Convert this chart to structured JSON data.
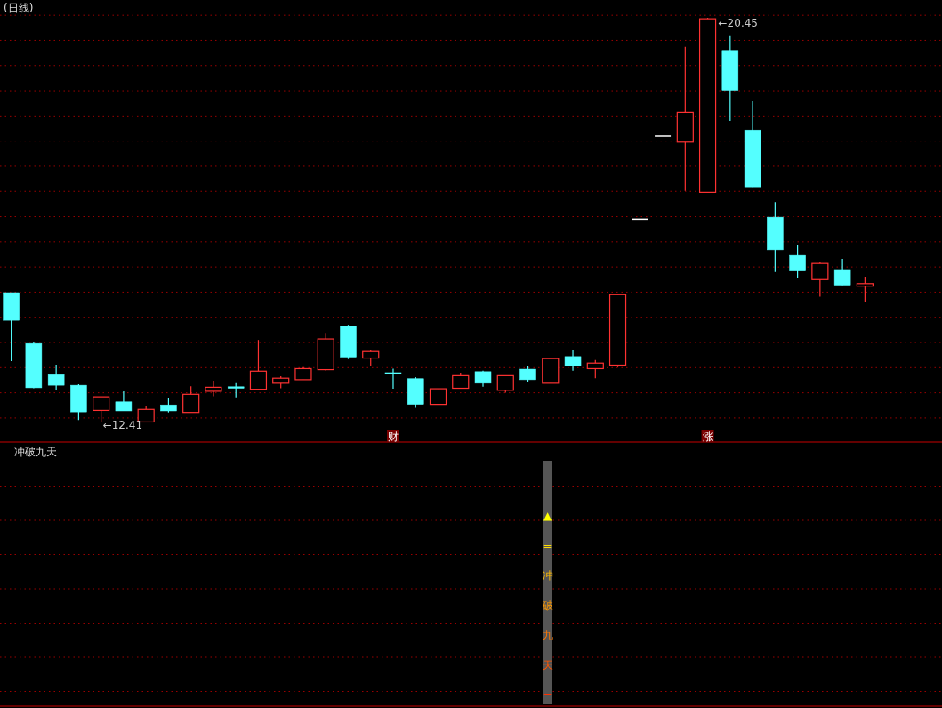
{
  "chart_data": [
    {
      "type": "candlestick",
      "title": "(日线)",
      "grid": "y",
      "yticks": [
        {
          "value": 12.5,
          "label": null
        },
        {
          "value": 13,
          "label": null
        },
        {
          "value": 13.5,
          "label": null
        },
        {
          "value": 14,
          "label": null
        },
        {
          "value": 14.5,
          "label": null
        },
        {
          "value": 15,
          "label": null
        },
        {
          "value": 15.5,
          "label": null
        },
        {
          "value": 16,
          "label": null
        },
        {
          "value": 16.5,
          "label": null
        },
        {
          "value": 17,
          "label": null
        },
        {
          "value": 17.5,
          "label": null
        },
        {
          "value": 18,
          "label": null
        },
        {
          "value": 18.5,
          "label": null
        },
        {
          "value": 19,
          "label": null
        },
        {
          "value": 19.5,
          "label": null
        },
        {
          "value": 20,
          "label": null
        },
        {
          "value": 20.5,
          "label": null
        }
      ],
      "categories": [
        null,
        null,
        null,
        null,
        null,
        null,
        null,
        null,
        null,
        null,
        null,
        null,
        null,
        null,
        null,
        null,
        null,
        "财",
        null,
        null,
        null,
        null,
        null,
        null,
        null,
        null,
        null,
        null,
        null,
        null,
        null,
        "涨",
        null,
        null,
        null,
        null,
        null,
        null,
        null
      ],
      "ohlc": [
        [
          14.99,
          14.99,
          13.63,
          14.44
        ],
        [
          13.98,
          14.02,
          13.09,
          13.1
        ],
        [
          13.36,
          13.56,
          13.05,
          13.15
        ],
        [
          13.15,
          13.17,
          12.46,
          12.62
        ],
        [
          12.65,
          12.92,
          12.41,
          12.92
        ],
        [
          12.82,
          13.03,
          12.64,
          12.64
        ],
        [
          12.42,
          12.73,
          12.42,
          12.67
        ],
        [
          12.76,
          12.9,
          12.61,
          12.64
        ],
        [
          12.61,
          13.13,
          12.61,
          12.97
        ],
        [
          13.03,
          13.24,
          12.93,
          13.11
        ],
        [
          13.12,
          13.19,
          12.91,
          13.09
        ],
        [
          13.07,
          14.05,
          13.07,
          13.43
        ],
        [
          13.19,
          13.33,
          13.09,
          13.29
        ],
        [
          13.26,
          13.51,
          13.26,
          13.48
        ],
        [
          13.46,
          14.19,
          13.44,
          14.07
        ],
        [
          14.32,
          14.35,
          13.67,
          13.71
        ],
        [
          13.69,
          13.86,
          13.53,
          13.82
        ],
        [
          13.4,
          13.48,
          13.08,
          13.37
        ],
        [
          13.28,
          13.31,
          12.7,
          12.77
        ],
        [
          12.77,
          13.08,
          12.77,
          13.08
        ],
        [
          13.09,
          13.4,
          13.09,
          13.34
        ],
        [
          13.42,
          13.44,
          13.12,
          13.19
        ],
        [
          13.05,
          13.34,
          13.0,
          13.34
        ],
        [
          13.47,
          13.54,
          13.21,
          13.26
        ],
        [
          13.19,
          13.68,
          13.19,
          13.68
        ],
        [
          13.72,
          13.86,
          13.44,
          13.53
        ],
        [
          13.48,
          13.65,
          13.29,
          13.59
        ],
        [
          13.55,
          14.95,
          13.51,
          14.95
        ],
        [
          16.45,
          16.45,
          16.45,
          16.45
        ],
        [
          18.1,
          18.1,
          18.1,
          18.1
        ],
        [
          17.98,
          19.87,
          17.01,
          18.57
        ],
        [
          16.98,
          20.45,
          16.98,
          20.43
        ],
        [
          19.8,
          20.1,
          18.4,
          19.01
        ],
        [
          18.22,
          18.79,
          17.09,
          17.09
        ],
        [
          16.49,
          16.79,
          15.4,
          15.84
        ],
        [
          15.73,
          15.93,
          15.28,
          15.42
        ],
        [
          15.25,
          15.59,
          14.91,
          15.57
        ],
        [
          15.45,
          15.66,
          15.14,
          15.14
        ],
        [
          15.12,
          15.31,
          14.8,
          15.17
        ]
      ],
      "colors": [
        "#54ffff",
        "#54ffff",
        "#54ffff",
        "#54ffff",
        "#ff3232",
        "#54ffff",
        "#ff3232",
        "#54ffff",
        "#ff3232",
        "#ff3232",
        "#54ffff",
        "#ff3232",
        "#ff3232",
        "#ff3232",
        "#ff3232",
        "#54ffff",
        "#ff3232",
        "#54ffff",
        "#54ffff",
        "#ff3232",
        "#ff3232",
        "#54ffff",
        "#ff3232",
        "#54ffff",
        "#ff3232",
        "#54ffff",
        "#ff3232",
        "#ff3232",
        "#ffffff",
        "#ffffff",
        "#ff3232",
        "#ff3232",
        "#54ffff",
        "#54ffff",
        "#54ffff",
        "#54ffff",
        "#ff3232",
        "#54ffff",
        "#ff3232"
      ],
      "annotations": [
        "←12.41",
        "←20.45"
      ]
    },
    {
      "type": "other",
      "title": "冲破九天",
      "annotations": [
        "▲",
        "=",
        "冲",
        "破",
        "九",
        "天",
        "="
      ]
    }
  ]
}
